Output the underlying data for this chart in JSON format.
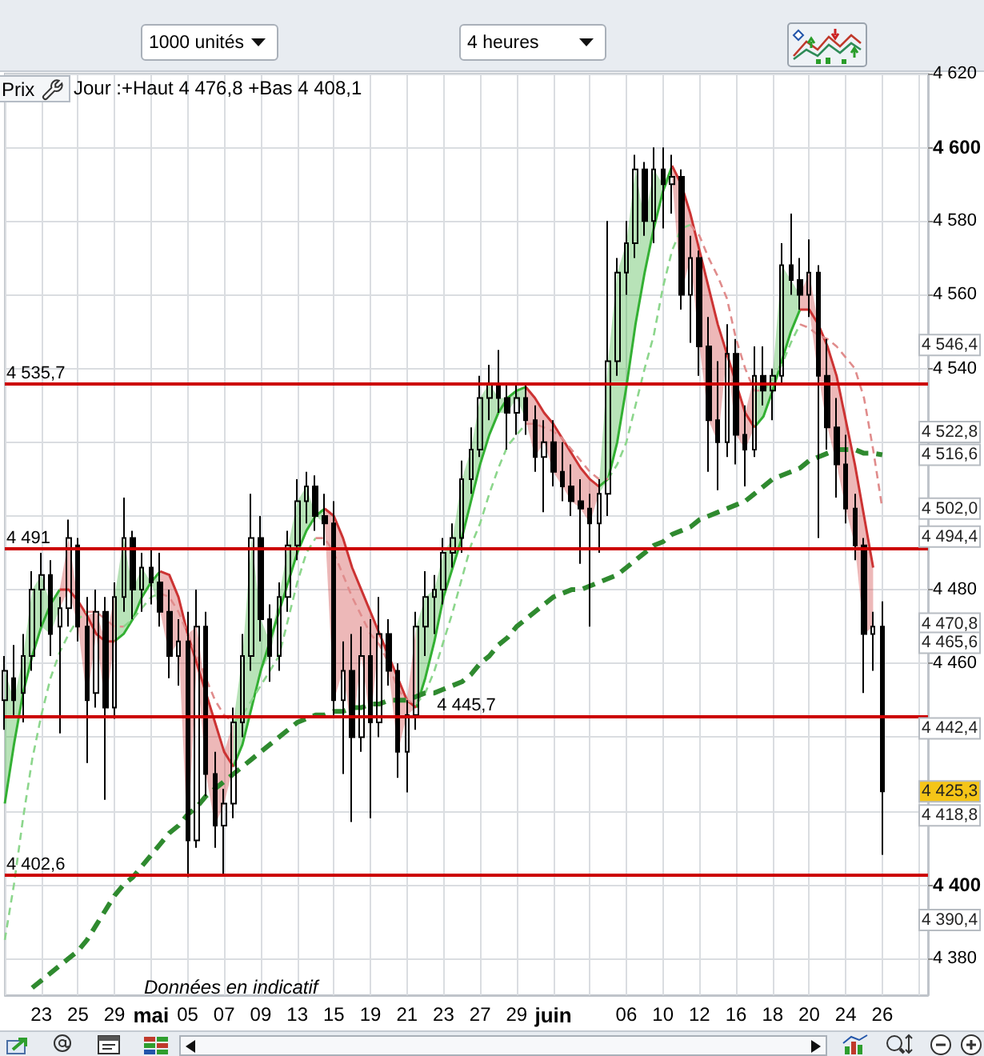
{
  "chart_data": {
    "type": "candlestick",
    "title": "Prix",
    "subtitle": "Jour :+Haut 4 476,8 +Bas 4 408,1",
    "color": "#000000",
    "marker": "none",
    "grid": true,
    "categories": [
      null,
      null,
      null,
      null,
      "23",
      null,
      null,
      null,
      "25",
      null,
      null,
      null,
      "29",
      null,
      null,
      null,
      "mai",
      null,
      null,
      null,
      "05",
      null,
      null,
      null,
      "07",
      null,
      null,
      null,
      "09",
      null,
      null,
      null,
      "13",
      null,
      null,
      null,
      "15",
      null,
      null,
      null,
      "19",
      null,
      null,
      null,
      "21",
      null,
      null,
      null,
      "23",
      null,
      null,
      null,
      "27",
      null,
      null,
      null,
      "29",
      null,
      null,
      null,
      "juin",
      null,
      null,
      null,
      null,
      null,
      null,
      null,
      "06",
      null,
      null,
      null,
      "10",
      null,
      null,
      null,
      "12",
      null,
      null,
      null,
      "16",
      null,
      null,
      null,
      "18",
      null,
      null,
      null,
      "20",
      null,
      null,
      null,
      "24",
      null,
      null,
      null,
      "26",
      null,
      null,
      null,
      null,
      null
    ],
    "ohlc": [
      [
        4450,
        4462,
        4442,
        4458
      ],
      [
        4456,
        4465,
        4446,
        4450
      ],
      [
        4452,
        4468,
        4444,
        4462
      ],
      [
        4462,
        4485,
        4458,
        4480
      ],
      [
        4480,
        4490,
        4470,
        4484
      ],
      [
        4484,
        4488,
        4462,
        4468
      ],
      [
        4470,
        4478,
        4441,
        4475
      ],
      [
        4475,
        4499,
        4470,
        4494
      ],
      [
        4492,
        4494,
        4466,
        4470
      ],
      [
        4470,
        4478,
        4433,
        4450
      ],
      [
        4452,
        4480,
        4448,
        4474
      ],
      [
        4474,
        4478,
        4423,
        4448
      ],
      [
        4448,
        4482,
        4445,
        4478
      ],
      [
        4478,
        4505,
        4474,
        4494
      ],
      [
        4494,
        4496,
        4472,
        4480
      ],
      [
        4480,
        4490,
        4474,
        4486
      ],
      [
        4486,
        4491,
        4476,
        4482
      ],
      [
        4482,
        4490,
        4470,
        4474
      ],
      [
        4474,
        4480,
        4456,
        4462
      ],
      [
        4462,
        4472,
        4454,
        4466
      ],
      [
        4466,
        4474,
        4402,
        4412
      ],
      [
        4412,
        4480,
        4410,
        4470
      ],
      [
        4470,
        4474,
        4424,
        4430
      ],
      [
        4430,
        4436,
        4410,
        4416
      ],
      [
        4416,
        4426,
        4403,
        4422
      ],
      [
        4422,
        4448,
        4418,
        4444
      ],
      [
        4444,
        4468,
        4440,
        4462
      ],
      [
        4462,
        4506,
        4458,
        4494
      ],
      [
        4494,
        4500,
        4466,
        4472
      ],
      [
        4472,
        4476,
        4455,
        4462
      ],
      [
        4462,
        4482,
        4458,
        4478
      ],
      [
        4478,
        4496,
        4474,
        4492
      ],
      [
        4492,
        4510,
        4488,
        4504
      ],
      [
        4504,
        4512,
        4498,
        4508
      ],
      [
        4508,
        4511,
        4496,
        4500
      ],
      [
        4500,
        4506,
        4492,
        4498
      ],
      [
        4498,
        4504,
        4446,
        4450
      ],
      [
        4450,
        4466,
        4430,
        4458
      ],
      [
        4458,
        4468,
        4417,
        4440
      ],
      [
        4440,
        4470,
        4436,
        4462
      ],
      [
        4462,
        4472,
        4418,
        4444
      ],
      [
        4444,
        4478,
        4440,
        4468
      ],
      [
        4468,
        4472,
        4454,
        4458
      ],
      [
        4458,
        4460,
        4429,
        4436
      ],
      [
        4436,
        4450,
        4425,
        4446
      ],
      [
        4446,
        4474,
        4442,
        4470
      ],
      [
        4470,
        4485,
        4462,
        4478
      ],
      [
        4478,
        4484,
        4468,
        4480
      ],
      [
        4480,
        4494,
        4476,
        4490
      ],
      [
        4490,
        4498,
        4486,
        4494
      ],
      [
        4494,
        4515,
        4490,
        4510
      ],
      [
        4510,
        4524,
        4506,
        4518
      ],
      [
        4518,
        4538,
        4516,
        4532
      ],
      [
        4532,
        4541,
        4526,
        4536
      ],
      [
        4536,
        4545,
        4528,
        4532
      ],
      [
        4532,
        4536,
        4518,
        4528
      ],
      [
        4528,
        4536,
        4522,
        4532
      ],
      [
        4532,
        4536,
        4522,
        4526
      ],
      [
        4526,
        4530,
        4512,
        4516
      ],
      [
        4516,
        4526,
        4501,
        4520
      ],
      [
        4520,
        4526,
        4508,
        4512
      ],
      [
        4512,
        4520,
        4504,
        4508
      ],
      [
        4508,
        4514,
        4500,
        4504
      ],
      [
        4504,
        4510,
        4487,
        4502
      ],
      [
        4502,
        4506,
        4470,
        4498
      ],
      [
        4498,
        4510,
        4490,
        4506
      ],
      [
        4506,
        4580,
        4500,
        4542
      ],
      [
        4542,
        4570,
        4538,
        4566
      ],
      [
        4566,
        4580,
        4560,
        4574
      ],
      [
        4574,
        4598,
        4570,
        4594
      ],
      [
        4594,
        4596,
        4576,
        4580
      ],
      [
        4580,
        4600,
        4574,
        4594
      ],
      [
        4594,
        4600,
        4578,
        4590
      ],
      [
        4590,
        4598,
        4582,
        4592
      ],
      [
        4592,
        4594,
        4556,
        4560
      ],
      [
        4560,
        4576,
        4547,
        4570
      ],
      [
        4570,
        4572,
        4538,
        4546
      ],
      [
        4546,
        4554,
        4512,
        4526
      ],
      [
        4526,
        4542,
        4507,
        4520
      ],
      [
        4520,
        4552,
        4516,
        4544
      ],
      [
        4544,
        4548,
        4514,
        4522
      ],
      [
        4522,
        4530,
        4508,
        4518
      ],
      [
        4518,
        4546,
        4516,
        4538
      ],
      [
        4538,
        4546,
        4530,
        4534
      ],
      [
        4534,
        4540,
        4526,
        4538
      ],
      [
        4538,
        4574,
        4536,
        4568
      ],
      [
        4568,
        4582,
        4560,
        4564
      ],
      [
        4564,
        4570,
        4556,
        4560
      ],
      [
        4560,
        4575,
        4554,
        4566
      ],
      [
        4566,
        4568,
        4494,
        4538
      ],
      [
        4538,
        4548,
        4518,
        4524
      ],
      [
        4524,
        4532,
        4505,
        4514
      ],
      [
        4514,
        4522,
        4498,
        4502
      ],
      [
        4502,
        4506,
        4488,
        4492
      ],
      [
        4492,
        4494,
        4452,
        4468
      ],
      [
        4468,
        4474,
        4458,
        4470
      ],
      [
        4470,
        4476.8,
        4408.1,
        4425.3
      ],
      null,
      null,
      null,
      null,
      null
    ],
    "series": [
      {
        "type": "line",
        "line_style": "solid",
        "color": "#33b033",
        "values": [
          4422,
          4438,
          4452,
          4462,
          4470,
          4476,
          4480,
          null,
          null,
          null,
          null,
          null,
          4466,
          4468,
          4472,
          4478,
          4482,
          4485,
          null,
          null,
          null,
          null,
          null,
          null,
          null,
          4432,
          4438,
          4448,
          4458,
          4466,
          4474,
          4482,
          4490,
          4496,
          4500,
          4502,
          null,
          null,
          null,
          null,
          null,
          null,
          null,
          null,
          null,
          4448,
          4456,
          4466,
          4478,
          4486,
          4494,
          4504,
          4514,
          4522,
          4528,
          4532,
          4534,
          4535,
          null,
          null,
          null,
          null,
          null,
          null,
          null,
          4508,
          4510,
          4520,
          4535,
          4552,
          4566,
          4578,
          4588,
          4595,
          null,
          null,
          null,
          null,
          null,
          null,
          null,
          null,
          4524,
          4527,
          4534,
          4542,
          4550,
          4556,
          null,
          null,
          null,
          null,
          null,
          null,
          null,
          null,
          null,
          null,
          null,
          null,
          null,
          null
        ],
        "lower": [
          4422,
          4438,
          4452,
          4462,
          4470,
          4468,
          4475,
          null,
          null,
          null,
          null,
          null,
          4466,
          4468,
          4472,
          4478,
          4482,
          4474,
          null,
          null,
          null,
          null,
          null,
          null,
          null,
          4432,
          4438,
          4448,
          4458,
          4462,
          4474,
          4482,
          4490,
          4496,
          4500,
          4498,
          null,
          null,
          null,
          null,
          null,
          null,
          null,
          null,
          null,
          4448,
          4456,
          4466,
          4478,
          4486,
          4494,
          4504,
          4514,
          4522,
          4528,
          4528,
          4532,
          4526,
          null,
          null,
          null,
          null,
          null,
          null,
          null,
          4506,
          4510,
          4520,
          4535,
          4552,
          4566,
          4578,
          4588,
          4592,
          null,
          null,
          null,
          null,
          null,
          null,
          null,
          null,
          4524,
          4527,
          4534,
          4542,
          4550,
          4556,
          null,
          null,
          null,
          null,
          null,
          null,
          null,
          null,
          null,
          null,
          null,
          null,
          null,
          null
        ],
        "upper": [
          4458,
          4450,
          4462,
          4480,
          4484,
          4476,
          4480,
          null,
          null,
          null,
          null,
          null,
          4478,
          4494,
          4480,
          4486,
          4482,
          4485,
          null,
          null,
          null,
          null,
          null,
          null,
          null,
          4444,
          4462,
          4494,
          4472,
          4466,
          4478,
          4492,
          4504,
          4508,
          4500,
          4502,
          null,
          null,
          null,
          null,
          null,
          null,
          null,
          null,
          null,
          4470,
          4478,
          4480,
          4490,
          4494,
          4510,
          4518,
          4532,
          4536,
          4532,
          4532,
          4534,
          4535,
          null,
          null,
          null,
          null,
          null,
          null,
          null,
          4508,
          4542,
          4566,
          4574,
          4594,
          4580,
          4594,
          4590,
          4595,
          null,
          null,
          null,
          null,
          null,
          null,
          null,
          null,
          4538,
          4534,
          4538,
          4568,
          4564,
          4560,
          null,
          null,
          null,
          null,
          null,
          null,
          null,
          null,
          null,
          null,
          null,
          null,
          null,
          null
        ]
      },
      {
        "type": "line",
        "line_style": "solid",
        "color": "#cc3333",
        "values": [
          null,
          null,
          null,
          null,
          null,
          null,
          4480,
          4480,
          4477,
          4473,
          4468,
          4466,
          4466,
          null,
          null,
          null,
          null,
          4485,
          4484,
          4478,
          4468,
          4460,
          4452,
          4444,
          4436,
          4432,
          null,
          null,
          null,
          null,
          null,
          null,
          null,
          null,
          null,
          4502,
          4500,
          4494,
          4486,
          4480,
          4474,
          4468,
          4462,
          4456,
          4450,
          4448,
          null,
          null,
          null,
          null,
          null,
          null,
          null,
          null,
          null,
          null,
          null,
          4535,
          4532,
          4528,
          4525,
          4521,
          4517,
          4513,
          4510,
          4508,
          null,
          null,
          null,
          null,
          null,
          null,
          null,
          4595,
          4590,
          4582,
          4572,
          4562,
          4552,
          4544,
          4536,
          4528,
          4524,
          null,
          null,
          null,
          null,
          4556,
          4556,
          4552,
          4546,
          4538,
          4526,
          4514,
          4500,
          4486,
          null,
          null,
          null,
          null,
          null,
          null
        ],
        "lower": [
          null,
          null,
          null,
          null,
          null,
          null,
          4475,
          4480,
          4470,
          4450,
          4468,
          4448,
          4466,
          null,
          null,
          null,
          null,
          4474,
          4462,
          4466,
          4412,
          4460,
          4430,
          4416,
          4422,
          4432,
          null,
          null,
          null,
          null,
          null,
          null,
          null,
          null,
          null,
          4498,
          4450,
          4458,
          4440,
          4462,
          4444,
          4468,
          4458,
          4436,
          4446,
          4448,
          null,
          null,
          null,
          null,
          null,
          null,
          null,
          null,
          null,
          null,
          null,
          4526,
          4516,
          4520,
          4512,
          4508,
          4504,
          4502,
          4498,
          4506,
          null,
          null,
          null,
          null,
          null,
          null,
          null,
          4592,
          4560,
          4570,
          4546,
          4526,
          4520,
          4544,
          4522,
          4518,
          4524,
          null,
          null,
          null,
          null,
          4556,
          4556,
          4538,
          4524,
          4514,
          4502,
          4492,
          4468,
          4470,
          null,
          null,
          null,
          null,
          null,
          null
        ],
        "upper": [
          null,
          null,
          null,
          null,
          null,
          null,
          4480,
          4494,
          4477,
          4473,
          4474,
          4466,
          4478,
          null,
          null,
          null,
          null,
          4485,
          4484,
          4478,
          4468,
          4470,
          4452,
          4444,
          4436,
          4444,
          null,
          null,
          null,
          null,
          null,
          null,
          null,
          null,
          null,
          4502,
          4500,
          4494,
          4486,
          4480,
          4474,
          4468,
          4462,
          4456,
          4450,
          4470,
          null,
          null,
          null,
          null,
          null,
          null,
          null,
          null,
          null,
          null,
          null,
          4535,
          4532,
          4528,
          4525,
          4521,
          4517,
          4513,
          4510,
          4508,
          null,
          null,
          null,
          null,
          null,
          null,
          null,
          4595,
          4590,
          4582,
          4572,
          4562,
          4552,
          4544,
          4536,
          4528,
          4538,
          null,
          null,
          null,
          null,
          4560,
          4566,
          4552,
          4546,
          4538,
          4526,
          4514,
          4500,
          4486,
          null,
          null,
          null,
          null,
          null,
          null
        ]
      },
      {
        "type": "line",
        "line_style": "dashed",
        "color": "#8cd68c",
        "values": [
          4385,
          4400,
          4418,
          4434,
          4446,
          4456,
          4463,
          4468,
          4472,
          4474,
          null,
          null,
          null,
          4470,
          4472,
          4475,
          4478,
          4479,
          null,
          null,
          null,
          null,
          null,
          null,
          null,
          4444,
          4446,
          4450,
          4454,
          4458,
          4462,
          4472,
          4482,
          4490,
          4494,
          null,
          null,
          null,
          null,
          null,
          null,
          null,
          null,
          null,
          null,
          4449,
          4452,
          4458,
          4466,
          4474,
          4483,
          4492,
          4498,
          4506,
          4513,
          4519,
          4522,
          4525,
          null,
          null,
          null,
          null,
          null,
          null,
          null,
          null,
          4510,
          4514,
          4520,
          4530,
          4540,
          4549,
          4562,
          4572,
          4578,
          4579,
          null,
          null,
          null,
          null,
          null,
          null,
          null,
          4534,
          4537,
          4541,
          4547,
          4552,
          null,
          null,
          null,
          null,
          null,
          null,
          null,
          null,
          null,
          null,
          null,
          null,
          null,
          null
        ]
      },
      {
        "type": "line",
        "line_style": "dashed",
        "color": "#e08c8c",
        "values": [
          null,
          null,
          null,
          null,
          null,
          null,
          null,
          null,
          null,
          4474,
          4474,
          4472,
          4470,
          4470,
          null,
          null,
          null,
          4479,
          4478,
          4474,
          4468,
          4462,
          4456,
          4450,
          4446,
          4444,
          null,
          null,
          null,
          null,
          null,
          null,
          null,
          null,
          4494,
          4494,
          4490,
          4484,
          4478,
          4473,
          4468,
          4465,
          4460,
          4453,
          4450,
          4449,
          null,
          null,
          null,
          null,
          null,
          null,
          null,
          null,
          null,
          null,
          null,
          4525,
          4525,
          4524,
          4523,
          4521,
          4518,
          4515,
          4512,
          4510,
          4510,
          null,
          null,
          null,
          null,
          null,
          null,
          null,
          null,
          4579,
          4576,
          4570,
          4565,
          4559,
          4548,
          4540,
          4534,
          4534,
          null,
          null,
          null,
          4552,
          4551,
          4549,
          4548,
          4546,
          4543,
          4540,
          4532,
          4518,
          4502,
          null,
          null,
          null,
          null,
          null
        ]
      },
      {
        "type": "line",
        "line_style": "dashed",
        "color": "#2f8a2f",
        "values": [
          null,
          null,
          null,
          4372,
          4374,
          4376,
          4378,
          4380,
          4382,
          4385,
          4389,
          4393,
          4397,
          4400,
          4402,
          4405,
          4408,
          4411,
          4414,
          4416,
          4419,
          4421,
          4424,
          4426,
          4428,
          4430,
          4432,
          4434,
          4436,
          4438,
          4440,
          4442,
          4444,
          4445,
          4446,
          4446,
          4447,
          4447,
          4448,
          4448,
          4449,
          4449,
          4450,
          4450,
          4450,
          4451,
          4452,
          4452,
          4453,
          4454,
          4455,
          4457,
          4460,
          4462,
          4465,
          4467,
          4470,
          4472,
          4474,
          4476,
          4478,
          4479,
          4480,
          4480,
          4481,
          4482,
          4483,
          4484,
          4486,
          4488,
          4490,
          4492,
          4493,
          4495,
          4496,
          4497,
          4499,
          4500,
          4501,
          4502,
          4503,
          4504,
          4506,
          4508,
          4510,
          4511,
          4512,
          4513,
          4515,
          4516,
          4517,
          4518,
          4518,
          4518,
          4517,
          4517,
          4516.6,
          null,
          null,
          null,
          null,
          null
        ]
      }
    ],
    "ylim": [
      4370,
      4620
    ],
    "yticks": [
      {
        "value": 4380,
        "label": "4 380"
      },
      {
        "value": 4400,
        "label": "4 400"
      },
      {
        "value": 4420,
        "label": null
      },
      {
        "value": 4440,
        "label": null
      },
      {
        "value": 4460,
        "label": "4 460"
      },
      {
        "value": 4480,
        "label": "4 480"
      },
      {
        "value": 4500,
        "label": null
      },
      {
        "value": 4520,
        "label": null
      },
      {
        "value": 4540,
        "label": "4 540"
      },
      {
        "value": 4560,
        "label": "4 560"
      },
      {
        "value": 4580,
        "label": "4 580"
      },
      {
        "value": 4600,
        "label": "4 600"
      },
      {
        "value": 4620,
        "label": "4 620"
      }
    ],
    "ref_lines": [
      {
        "axis": "y",
        "value": 4535.7,
        "label": "4 535,7",
        "color": "#cc0000"
      },
      {
        "axis": "y",
        "value": 4491,
        "label": "4 491",
        "color": "#cc0000"
      },
      {
        "axis": "y",
        "value": 4445.7,
        "label": "4 445,7",
        "color": "#cc0000"
      },
      {
        "axis": "y",
        "value": 4402.6,
        "label": "4 402,6",
        "color": "#cc0000"
      }
    ],
    "annotations": [
      "1000 unités",
      "4 heures",
      "Données en indicatif",
      {
        "text": "4 546,4",
        "y": 4546.4
      },
      {
        "text": "4 522,8",
        "y": 4522.8
      },
      {
        "text": "4 516,6",
        "y": 4516.6
      },
      {
        "text": "4 502,0",
        "y": 4502.0
      },
      {
        "text": "4 494,4",
        "y": 4494.4
      },
      {
        "text": "4 470,8",
        "y": 4470.8
      },
      {
        "text": "4 465,6",
        "y": 4465.6
      },
      {
        "text": "4 442,4",
        "y": 4442.4
      },
      {
        "text": "4 425,3",
        "y": 4425.3
      },
      {
        "text": "4 418,8",
        "y": 4418.8
      },
      {
        "text": "4 390,4",
        "y": 4390.4
      }
    ]
  }
}
